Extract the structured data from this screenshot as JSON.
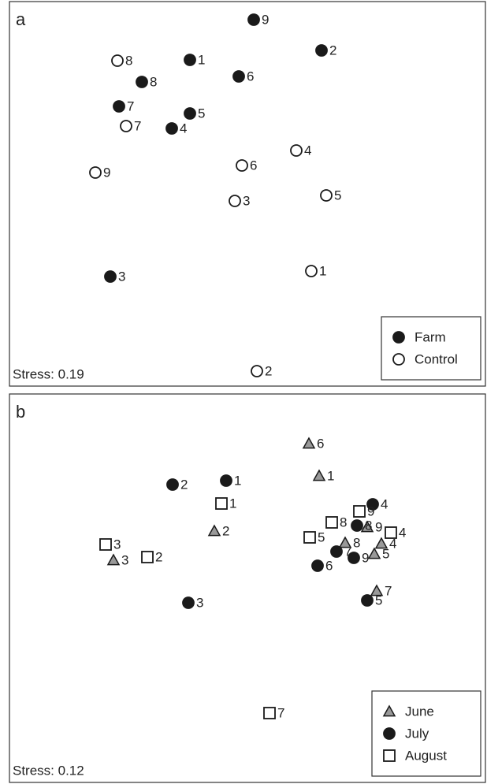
{
  "chart_data": [
    {
      "type": "scatter",
      "panel_label": "a",
      "annotation": "Stress: 0.19",
      "legend": "lower right",
      "xlim": [
        0,
        604
      ],
      "ylim": [
        0,
        488
      ],
      "series": [
        {
          "name": "Farm",
          "marker": "circle",
          "color": "#1a1a1a",
          "fill": "#1a1a1a",
          "labels": [
            "9",
            "2",
            "1",
            "6",
            "8",
            "7",
            "5",
            "4",
            "3"
          ],
          "x": [
            310,
            396,
            229,
            291,
            168,
            139,
            229,
            206,
            128
          ],
          "y": [
            465,
            426,
            414,
            393,
            386,
            355,
            346,
            327,
            139
          ]
        },
        {
          "name": "Control",
          "marker": "circle",
          "color": "#1a1a1a",
          "fill": "#ffffff",
          "labels": [
            "8",
            "7",
            "9",
            "6",
            "4",
            "3",
            "5",
            "1",
            "2"
          ],
          "x": [
            137,
            148,
            109,
            295,
            364,
            286,
            402,
            383,
            314
          ],
          "y": [
            413,
            330,
            271,
            280,
            299,
            235,
            242,
            146,
            19
          ]
        }
      ]
    },
    {
      "type": "scatter",
      "panel_label": "b",
      "annotation": "Stress: 0.12",
      "legend": "lower right",
      "xlim": [
        0,
        604
      ],
      "ylim": [
        0,
        493
      ],
      "series": [
        {
          "name": "June",
          "marker": "triangle",
          "color": "#1a1a1a",
          "fill": "#999999",
          "labels": [
            "6",
            "1",
            "2",
            "3",
            "8",
            "9",
            "4",
            "5",
            "7"
          ],
          "x": [
            380,
            393,
            260,
            132,
            426,
            454,
            472,
            463,
            466
          ],
          "y": [
            430,
            389,
            319,
            282,
            304,
            324,
            303,
            290,
            243
          ]
        },
        {
          "name": "July",
          "marker": "circle",
          "color": "#1a1a1a",
          "fill": "#1a1a1a",
          "labels": [
            "1",
            "2",
            "3",
            "4",
            "8",
            "7",
            "9",
            "6",
            "5"
          ],
          "x": [
            275,
            207,
            227,
            461,
            441,
            415,
            437,
            391,
            454
          ],
          "y": [
            383,
            378,
            228,
            353,
            326,
            293,
            285,
            275,
            231
          ]
        },
        {
          "name": "August",
          "marker": "square",
          "color": "#1a1a1a",
          "fill": "#ffffff",
          "labels": [
            "1",
            "3",
            "2",
            "9",
            "8",
            "5",
            "4",
            "7"
          ],
          "x": [
            269,
            122,
            175,
            444,
            409,
            381,
            484,
            330
          ],
          "y": [
            354,
            302,
            286,
            344,
            330,
            311,
            317,
            88
          ]
        }
      ]
    }
  ]
}
